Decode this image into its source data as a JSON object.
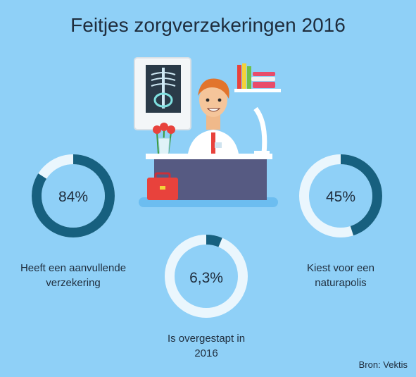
{
  "title": "Feitjes zorgverzekeringen 2016",
  "source": "Bron: Vektis",
  "colors": {
    "background": "#8fd0f7",
    "ring_fill": "#17607f",
    "ring_track": "#eaf6fd"
  },
  "chart_data": [
    {
      "type": "pie",
      "value": 84,
      "label": "84%",
      "caption": [
        "Heeft een aanvullende",
        "verzekering"
      ]
    },
    {
      "type": "pie",
      "value": 6.3,
      "label": "6,3%",
      "caption": [
        "Is overgestapt in",
        "2016"
      ]
    },
    {
      "type": "pie",
      "value": 45,
      "label": "45%",
      "caption": [
        "Kiest voor een",
        "naturapolis"
      ]
    }
  ]
}
